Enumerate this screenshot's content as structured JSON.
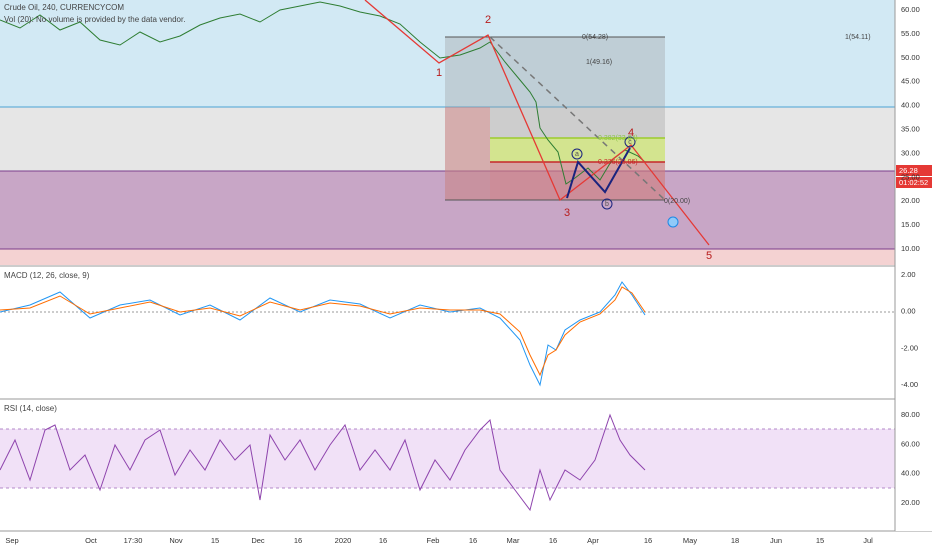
{
  "header": {
    "symbol": "Crude Oil, 240, CURRENCYCOM",
    "volume_note": "Vol (20): No volume is provided by the data vendor."
  },
  "price_axis": [
    "60.00",
    "55.00",
    "50.00",
    "45.00",
    "40.00",
    "35.00",
    "30.00",
    "25.00",
    "20.00",
    "15.00",
    "10.00"
  ],
  "last_price": "26.28",
  "countdown": "01:02:52",
  "waves": [
    "1",
    "2",
    "3",
    "4",
    "5",
    "a",
    "b",
    "c"
  ],
  "fib_levels": [
    "0(54.28)",
    "1(54.11)",
    "1(49.16)",
    "0.382(33.04)",
    "0.236(28.06)",
    "0(20.00)"
  ],
  "macd": {
    "title": "MACD (12, 26, close, 9)",
    "axis": [
      "2.00",
      "0.00",
      "-2.00",
      "-4.00"
    ]
  },
  "rsi": {
    "title": "RSI (14, close)",
    "axis": [
      "80.00",
      "60.00",
      "40.00",
      "20.00"
    ]
  },
  "time_axis": [
    "Sep",
    "Oct",
    "17:30",
    "Nov",
    "15",
    "Dec",
    "16",
    "2020",
    "16",
    "Feb",
    "16",
    "Mar",
    "16",
    "Apr",
    "16",
    "May",
    "18",
    "Jun",
    "15",
    "Jul"
  ]
}
